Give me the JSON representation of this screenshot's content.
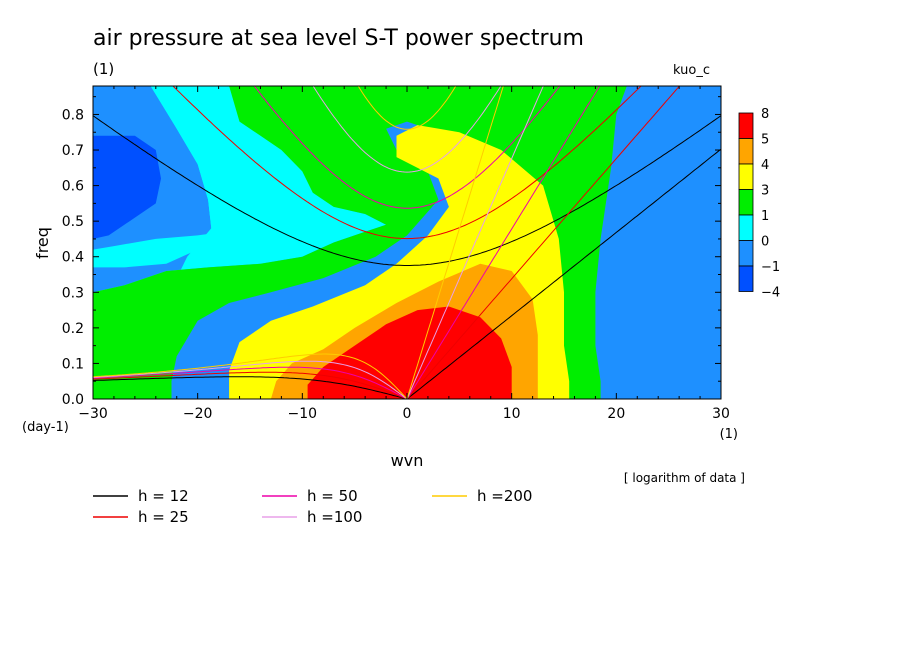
{
  "chart_data": {
    "type": "heatmap",
    "title": "air pressure at sea level S-T power spectrum",
    "y_unit_label": "(1)",
    "model_label": "kuo_c",
    "xlabel": "wvn",
    "ylabel": "freq",
    "x_unit_left": "(day-1)",
    "x_unit_right": "(1)",
    "note": "[ logarithm of data ]",
    "xlim": [
      -30,
      30
    ],
    "ylim": [
      0,
      0.88
    ],
    "xticks": [
      -30,
      -20,
      -10,
      0,
      10,
      20,
      30
    ],
    "yticks": [
      0.0,
      0.1,
      0.2,
      0.3,
      0.4,
      0.5,
      0.6,
      0.7,
      0.8
    ],
    "colorbar": {
      "labels": [
        "8",
        "5",
        "4",
        "3",
        "1",
        "0",
        "−1",
        "−4"
      ],
      "colors": [
        "#ff0000",
        "#ffa500",
        "#ffff00",
        "#00ee00",
        "#00ffff",
        "#1e90ff",
        "#0050ff"
      ]
    },
    "legend": [
      {
        "label": "h = 12",
        "color": "#000000"
      },
      {
        "label": "h = 50",
        "color": "#ee00aa"
      },
      {
        "label": "h =200",
        "color": "#ffcc00"
      },
      {
        "label": "h = 25",
        "color": "#ee0000"
      },
      {
        "label": "h =100",
        "color": "#e8a0e8"
      }
    ],
    "series": [
      {
        "name": "h = 12",
        "h": 12
      },
      {
        "name": "h = 25",
        "h": 25
      },
      {
        "name": "h = 50",
        "h": 50
      },
      {
        "name": "h =100",
        "h": 100
      },
      {
        "name": "h =200",
        "h": 200
      }
    ],
    "regions": [
      {
        "level": "-1",
        "color": "#1e90ff",
        "points": [
          [
            -30,
            0.88
          ],
          [
            -24.5,
            0.88
          ],
          [
            -22,
            0.76
          ],
          [
            -20,
            0.66
          ],
          [
            -19,
            0.56
          ],
          [
            -18.7,
            0.48
          ],
          [
            -20,
            0.42
          ],
          [
            -23,
            0.38
          ],
          [
            -27,
            0.37
          ],
          [
            -30,
            0.37
          ]
        ]
      },
      {
        "level": "-4",
        "color": "#0050ff",
        "points": [
          [
            -30,
            0.74
          ],
          [
            -26,
            0.74
          ],
          [
            -24,
            0.7
          ],
          [
            -23.5,
            0.62
          ],
          [
            -24,
            0.55
          ],
          [
            -26.5,
            0.5
          ],
          [
            -28.5,
            0.46
          ],
          [
            -30,
            0.45
          ]
        ]
      },
      {
        "level": "0",
        "color": "#00ffff",
        "points": [
          [
            -30,
            0
          ],
          [
            -30,
            0.37
          ],
          [
            -27,
            0.37
          ],
          [
            -23,
            0.38
          ],
          [
            -20,
            0.42
          ],
          [
            -18.7,
            0.48
          ],
          [
            -19,
            0.56
          ],
          [
            -20,
            0.66
          ],
          [
            -22,
            0.76
          ],
          [
            -24.5,
            0.88
          ],
          [
            -14,
            0.88
          ],
          [
            -12,
            0.8
          ],
          [
            -10,
            0.74
          ],
          [
            -8,
            0.72
          ],
          [
            -6,
            0.7
          ],
          [
            -4,
            0.66
          ],
          [
            -3,
            0.58
          ],
          [
            -6,
            0.52
          ],
          [
            -10,
            0.5
          ],
          [
            -15,
            0.48
          ],
          [
            -20,
            0.46
          ],
          [
            -24,
            0.45
          ],
          [
            -28,
            0.43
          ],
          [
            -30,
            0.42
          ]
        ]
      },
      {
        "level": "0b",
        "color": "#00ffff",
        "points": [
          [
            -30,
            0
          ],
          [
            -30,
            0.3
          ],
          [
            -27,
            0.32
          ],
          [
            -23,
            0.36
          ],
          [
            -19,
            0.37
          ],
          [
            -14,
            0.38
          ],
          [
            -10,
            0.4
          ],
          [
            -7,
            0.44
          ],
          [
            -4,
            0.47
          ],
          [
            -2,
            0.49
          ],
          [
            -4,
            0.52
          ],
          [
            -7,
            0.54
          ],
          [
            -9,
            0.58
          ],
          [
            -10,
            0.64
          ],
          [
            -12,
            0.7
          ],
          [
            -14,
            0.74
          ],
          [
            -16,
            0.78
          ],
          [
            -17,
            0.88
          ],
          [
            -24.5,
            0.88
          ],
          [
            -22,
            0.76
          ],
          [
            -20,
            0.66
          ],
          [
            -19,
            0.56
          ],
          [
            -18.7,
            0.48
          ],
          [
            -21,
            0.4
          ],
          [
            -24,
            0.22
          ],
          [
            -26,
            0.05
          ],
          [
            -26,
            0
          ]
        ]
      },
      {
        "level": "1",
        "color": "#00ee00",
        "points": [
          [
            -30,
            0
          ],
          [
            -30,
            0.3
          ],
          [
            -27,
            0.32
          ],
          [
            -23,
            0.36
          ],
          [
            -19,
            0.37
          ],
          [
            -14,
            0.38
          ],
          [
            -10,
            0.4
          ],
          [
            -7,
            0.44
          ],
          [
            -4,
            0.47
          ],
          [
            -2,
            0.49
          ],
          [
            -4,
            0.52
          ],
          [
            -7,
            0.54
          ],
          [
            -9,
            0.58
          ],
          [
            -10,
            0.64
          ],
          [
            -12,
            0.7
          ],
          [
            -14,
            0.74
          ],
          [
            -16,
            0.78
          ],
          [
            -17,
            0.88
          ],
          [
            21,
            0.88
          ],
          [
            20,
            0.8
          ],
          [
            19.5,
            0.65
          ],
          [
            18.5,
            0.45
          ],
          [
            18,
            0.3
          ],
          [
            18,
            0.15
          ],
          [
            18.5,
            0.05
          ],
          [
            18.5,
            0
          ],
          [
            14.5,
            0
          ],
          [
            15,
            0.1
          ],
          [
            14.5,
            0.22
          ],
          [
            12,
            0.4
          ],
          [
            10,
            0.55
          ],
          [
            8,
            0.65
          ],
          [
            5,
            0.72
          ],
          [
            2,
            0.76
          ],
          [
            0,
            0.78
          ],
          [
            -2,
            0.76
          ],
          [
            -1,
            0.7
          ],
          [
            2,
            0.64
          ],
          [
            3,
            0.56
          ],
          [
            0,
            0.46
          ],
          [
            -3,
            0.4
          ],
          [
            -8,
            0.34
          ],
          [
            -13,
            0.3
          ],
          [
            -17,
            0.27
          ],
          [
            -20,
            0.22
          ],
          [
            -22,
            0.12
          ],
          [
            -22.5,
            0.05
          ],
          [
            -22.5,
            0
          ]
        ]
      },
      {
        "level": "3",
        "color": "#ffff00",
        "points": [
          [
            -17,
            0
          ],
          [
            -17,
            0.08
          ],
          [
            -16,
            0.16
          ],
          [
            -13,
            0.22
          ],
          [
            -9,
            0.26
          ],
          [
            -4,
            0.32
          ],
          [
            -1,
            0.38
          ],
          [
            2,
            0.46
          ],
          [
            4,
            0.54
          ],
          [
            3,
            0.62
          ],
          [
            -1,
            0.68
          ],
          [
            -1,
            0.74
          ],
          [
            1,
            0.77
          ],
          [
            5,
            0.75
          ],
          [
            9,
            0.7
          ],
          [
            13,
            0.6
          ],
          [
            14.5,
            0.45
          ],
          [
            15,
            0.3
          ],
          [
            15,
            0.15
          ],
          [
            15.5,
            0.05
          ],
          [
            15.5,
            0
          ]
        ]
      },
      {
        "level": "4",
        "color": "#ffa500",
        "points": [
          [
            -13,
            0
          ],
          [
            -12.5,
            0.05
          ],
          [
            -11,
            0.1
          ],
          [
            -8,
            0.14
          ],
          [
            -5,
            0.2
          ],
          [
            -1,
            0.27
          ],
          [
            3,
            0.33
          ],
          [
            7,
            0.38
          ],
          [
            10,
            0.36
          ],
          [
            12,
            0.28
          ],
          [
            12.5,
            0.18
          ],
          [
            12.5,
            0.08
          ],
          [
            12.5,
            0
          ]
        ]
      },
      {
        "level": "5",
        "color": "#ff0000",
        "points": [
          [
            -9.5,
            0
          ],
          [
            -9.5,
            0.04
          ],
          [
            -8,
            0.09
          ],
          [
            -5,
            0.15
          ],
          [
            -2,
            0.21
          ],
          [
            1,
            0.25
          ],
          [
            4,
            0.26
          ],
          [
            7,
            0.23
          ],
          [
            9,
            0.17
          ],
          [
            10,
            0.09
          ],
          [
            10,
            0
          ]
        ]
      }
    ]
  }
}
